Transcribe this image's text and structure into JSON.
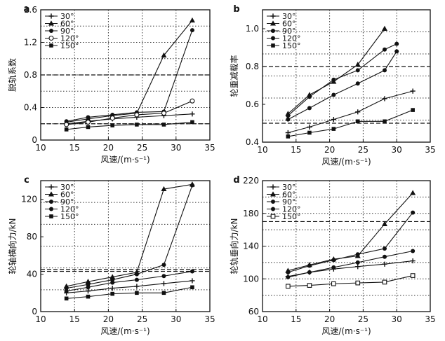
{
  "chart_data": [
    {
      "type": "line",
      "panel_label": "a",
      "xlabel": "风速/(m·s⁻¹)",
      "ylabel": "脱轨系数",
      "xlim": [
        10,
        35
      ],
      "ylim": [
        0,
        1.6
      ],
      "xticks": [
        "10",
        "15",
        "20",
        "25",
        "30",
        "35"
      ],
      "yticks": [
        "0",
        "0.4",
        "0.8",
        "1.2",
        "1.6"
      ],
      "reference_lines": [
        0.8,
        0.2
      ],
      "x": [
        13.8,
        17,
        20.6,
        24.2,
        28.2,
        32.4
      ],
      "series": [
        {
          "name": "30°",
          "marker": "plus",
          "values": [
            0.2,
            0.23,
            0.26,
            0.28,
            0.3,
            0.32
          ]
        },
        {
          "name": "60°",
          "marker": "triangle",
          "values": [
            0.22,
            0.26,
            0.3,
            0.33,
            1.04,
            1.47
          ]
        },
        {
          "name": "90°",
          "marker": "circle",
          "values": [
            0.23,
            0.28,
            0.31,
            0.34,
            0.35,
            1.35
          ]
        },
        {
          "name": "120°",
          "marker": "hollow-circle",
          "values": [
            0.19,
            0.22,
            0.27,
            0.31,
            0.33,
            0.48
          ]
        },
        {
          "name": "150°",
          "marker": "square",
          "values": [
            0.13,
            0.16,
            0.18,
            0.19,
            0.19,
            0.22
          ]
        }
      ]
    },
    {
      "type": "line",
      "panel_label": "b",
      "xlabel": "风速/(m·s⁻¹)",
      "ylabel": "轮重减载率",
      "xlim": [
        10,
        35
      ],
      "ylim": [
        0.4,
        1.1
      ],
      "xticks": [
        "10",
        "15",
        "20",
        "25",
        "30",
        "35"
      ],
      "yticks": [
        "0.4",
        "0.6",
        "0.8",
        "1.0"
      ],
      "reference_lines": [
        0.8,
        0.5
      ],
      "x": [
        13.8,
        17,
        20.6,
        24.2,
        28.2,
        32.4
      ],
      "series": [
        {
          "name": "30°",
          "marker": "plus",
          "x": [
            13.8,
            17,
            20.6,
            24.2,
            28.2,
            32.4
          ],
          "values": [
            0.45,
            0.48,
            0.52,
            0.56,
            0.63,
            0.67
          ]
        },
        {
          "name": "60°",
          "marker": "triangle",
          "x": [
            13.8,
            17,
            20.6,
            24.2,
            28.2
          ],
          "values": [
            0.55,
            0.65,
            0.72,
            0.81,
            1.0
          ]
        },
        {
          "name": "90°",
          "marker": "circle",
          "x": [
            13.8,
            17,
            20.6,
            24.2,
            28.2,
            30
          ],
          "values": [
            0.54,
            0.64,
            0.73,
            0.78,
            0.89,
            0.92
          ]
        },
        {
          "name": "120°",
          "marker": "circle",
          "x": [
            13.8,
            17,
            20.6,
            24.2,
            28.2,
            30
          ],
          "values": [
            0.52,
            0.58,
            0.65,
            0.71,
            0.78,
            0.88
          ]
        },
        {
          "name": "150°",
          "marker": "square",
          "x": [
            13.8,
            17,
            20.6,
            24.2,
            28.2,
            32.4
          ],
          "values": [
            0.43,
            0.45,
            0.47,
            0.51,
            0.51,
            0.57
          ]
        }
      ]
    },
    {
      "type": "line",
      "panel_label": "c",
      "xlabel": "风速/(m·s⁻¹)",
      "ylabel": "轮轴横向力/kN",
      "xlim": [
        10,
        35
      ],
      "ylim": [
        0,
        140
      ],
      "xticks": [
        "10",
        "15",
        "20",
        "25",
        "30",
        "35"
      ],
      "yticks": [
        "0",
        "40",
        "80",
        "120"
      ],
      "reference_lines": [
        45,
        43
      ],
      "x": [
        13.8,
        17,
        20.6,
        24.2,
        28.2,
        32.4
      ],
      "series": [
        {
          "name": "30°",
          "marker": "plus",
          "values": [
            20,
            22,
            25,
            27,
            30,
            33
          ]
        },
        {
          "name": "60°",
          "marker": "triangle",
          "values": [
            27,
            32,
            37,
            42,
            131,
            136
          ]
        },
        {
          "name": "90°",
          "marker": "circle",
          "values": [
            25,
            29,
            34,
            40,
            50,
            135
          ]
        },
        {
          "name": "120°",
          "marker": "circle",
          "values": [
            22,
            26,
            31,
            34,
            38,
            43
          ]
        },
        {
          "name": "150°",
          "marker": "square",
          "values": [
            14,
            16,
            19,
            20,
            20,
            26
          ]
        }
      ]
    },
    {
      "type": "line",
      "panel_label": "d",
      "xlabel": "风速/(m·s⁻¹)",
      "ylabel": "轮轨垂向力/kN",
      "xlim": [
        10,
        35
      ],
      "ylim": [
        60,
        220
      ],
      "xticks": [
        "10",
        "15",
        "20",
        "25",
        "30",
        "35"
      ],
      "yticks": [
        "60",
        "100",
        "140",
        "180",
        "220"
      ],
      "reference_lines": [
        170
      ],
      "x": [
        13.8,
        17,
        20.6,
        24.2,
        28.2,
        32.4
      ],
      "series": [
        {
          "name": "30°",
          "marker": "plus",
          "values": [
            103,
            108,
            112,
            115,
            118,
            122
          ]
        },
        {
          "name": "60°",
          "marker": "triangle",
          "values": [
            110,
            117,
            124,
            128,
            167,
            205
          ]
        },
        {
          "name": "90°",
          "marker": "circle",
          "values": [
            108,
            116,
            123,
            130,
            137,
            181
          ]
        },
        {
          "name": "120°",
          "marker": "circle",
          "values": [
            102,
            108,
            114,
            120,
            127,
            134
          ]
        },
        {
          "name": "150°",
          "marker": "hollow-square",
          "values": [
            91,
            92,
            94,
            95,
            96,
            104
          ]
        }
      ]
    }
  ]
}
